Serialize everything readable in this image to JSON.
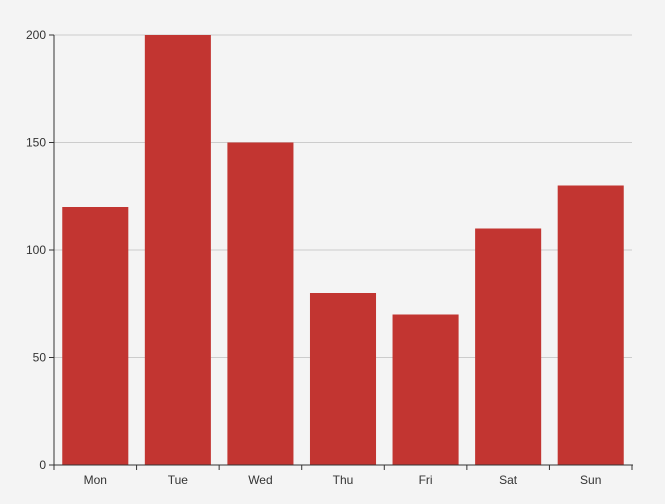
{
  "chart_data": {
    "type": "bar",
    "title": "",
    "xlabel": "",
    "ylabel": "",
    "categories": [
      "Mon",
      "Tue",
      "Wed",
      "Thu",
      "Fri",
      "Sat",
      "Sun"
    ],
    "values": [
      120,
      200,
      150,
      80,
      70,
      110,
      130
    ],
    "ylim": [
      0,
      200
    ],
    "yticks": [
      0,
      50,
      100,
      150,
      200
    ],
    "grid": true,
    "legend": "none",
    "colors": {
      "bar": "#c23531",
      "background": "#f4f4f4",
      "grid": "#cccccc",
      "axis": "#333333"
    }
  }
}
